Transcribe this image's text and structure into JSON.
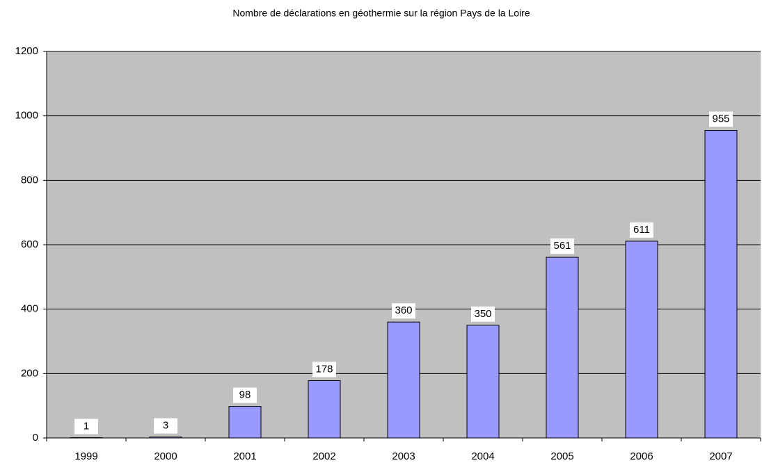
{
  "chart_data": {
    "type": "bar",
    "title": "Nombre de déclarations en géothermie sur la région Pays de la Loire",
    "categories": [
      "1999",
      "2000",
      "2001",
      "2002",
      "2003",
      "2004",
      "2005",
      "2006",
      "2007"
    ],
    "values": [
      1,
      3,
      98,
      178,
      360,
      350,
      561,
      611,
      955
    ],
    "color": "#9999ff",
    "ylim": [
      0,
      1200
    ],
    "yticks": [
      0,
      200,
      400,
      600,
      800,
      1000,
      1200
    ],
    "grid": true
  }
}
